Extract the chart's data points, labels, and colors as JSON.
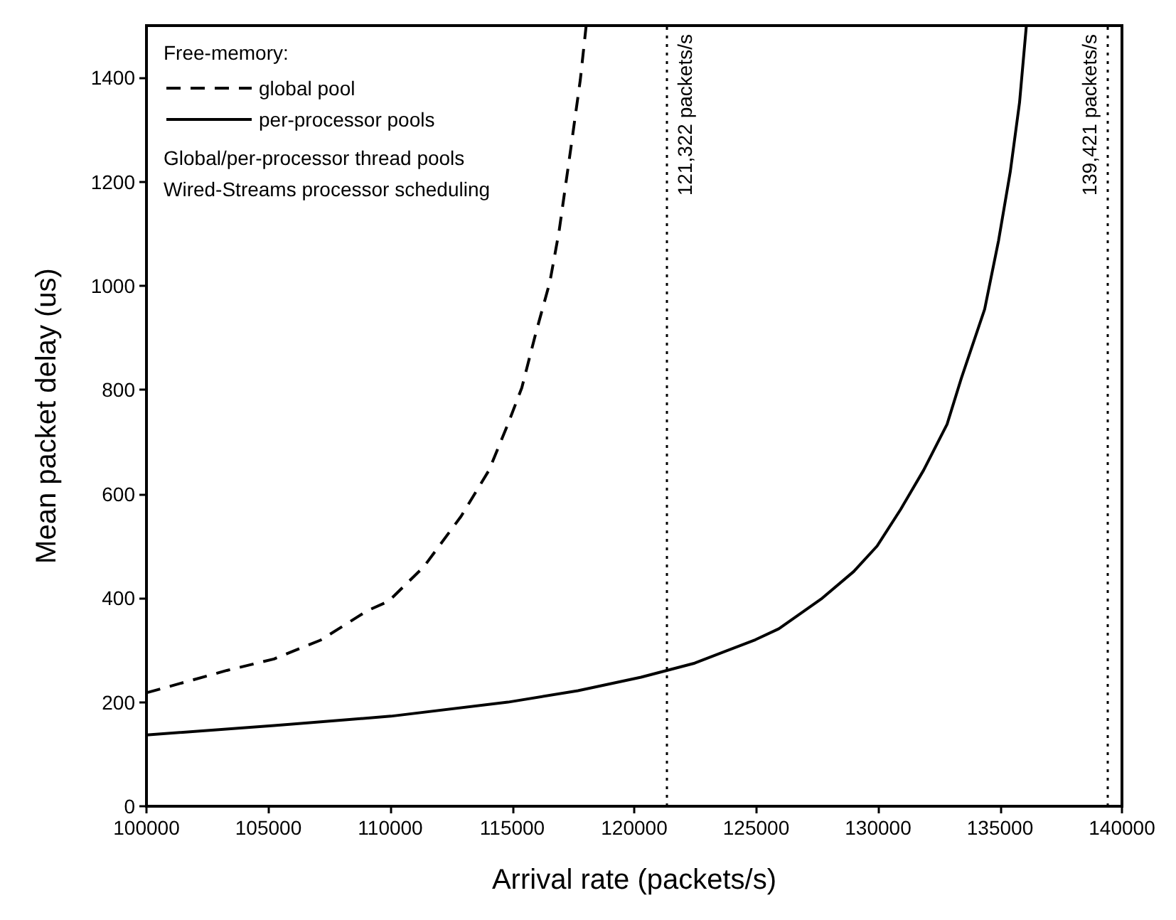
{
  "chart_data": {
    "type": "line",
    "xlabel": "Arrival rate (packets/s)",
    "ylabel": "Mean packet delay (us)",
    "legend_title": "Free-memory:",
    "legend": "top left",
    "grid": false,
    "marker": "none",
    "annotations": [
      "Global/per-processor thread pools",
      "Wired-Streams processor scheduling"
    ],
    "xlim": [
      100000,
      140000
    ],
    "xticks": [
      100000,
      105000,
      110000,
      115000,
      120000,
      125000,
      130000,
      135000,
      140000
    ],
    "ylim": [
      0,
      1500
    ],
    "yticks": [
      0,
      200,
      400,
      600,
      800,
      1000,
      1200,
      1400
    ],
    "series": [
      {
        "name": "global pool",
        "color": "#000000",
        "line_style": "dashed",
        "x": [
          100000,
          103300,
          105230,
          107130,
          109070,
          109930,
          111370,
          112900,
          114050,
          114820,
          115390,
          115970,
          116540,
          116920,
          117400,
          117790,
          118030
        ],
        "values": [
          218,
          261,
          283,
          319,
          376,
          394,
          460,
          557,
          646,
          734,
          804,
          910,
          1007,
          1105,
          1264,
          1396,
          1500
        ]
      },
      {
        "name": "per-processor pools",
        "color": "#000000",
        "line_style": "solid",
        "x": [
          100000,
          105230,
          110020,
          114820,
          117690,
          120280,
          122480,
          124970,
          125930,
          127660,
          129000,
          129960,
          130920,
          131870,
          132830,
          133410,
          134370,
          134940,
          135420,
          135800,
          136080
        ],
        "values": [
          137,
          155,
          173,
          200,
          222,
          248,
          275,
          320,
          341,
          398,
          451,
          500,
          570,
          646,
          734,
          822,
          955,
          1087,
          1219,
          1352,
          1500
        ]
      }
    ],
    "ref_lines": [
      {
        "axis": "x",
        "value": 121322,
        "label": "121,322 packets/s",
        "line_style": "dotted",
        "color": "#000000"
      },
      {
        "axis": "x",
        "value": 139421,
        "label": "139,421 packets/s",
        "line_style": "dotted",
        "color": "#000000"
      }
    ]
  }
}
